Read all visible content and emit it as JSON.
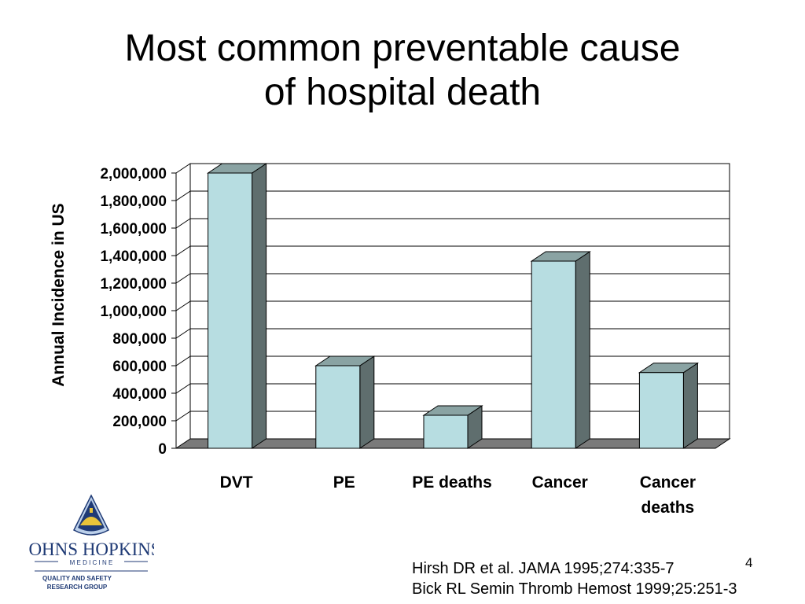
{
  "slide": {
    "title_line1": "Most common preventable cause",
    "title_line2": "of hospital death",
    "page_number": "4",
    "references": [
      "Hirsh DR et al. JAMA 1995;274:335-7",
      "Bick RL Semin Thromb Hemost 1999;25:251-3"
    ]
  },
  "logo": {
    "line1": "JOHNS HOPKINS",
    "line2": "M E D I C I N E",
    "line3": "QUALITY AND SAFETY",
    "line4": "RESEARCH GROUP",
    "icon": "dome-shield-icon",
    "colors": {
      "navy": "#1f3a75",
      "gold": "#e8c33a",
      "pale_blue": "#bcd0ea"
    }
  },
  "chart_data": {
    "type": "bar",
    "style": "3d",
    "title": "",
    "xlabel": "",
    "ylabel": "Annual Incidence in US",
    "categories": [
      [
        "DVT"
      ],
      [
        "PE"
      ],
      [
        "PE deaths"
      ],
      [
        "Cancer"
      ],
      [
        "Cancer",
        "deaths"
      ]
    ],
    "values": [
      2000000,
      600000,
      240000,
      1360000,
      550000
    ],
    "ylim": [
      0,
      2000000
    ],
    "yticks": [
      "0",
      "200,000",
      "400,000",
      "600,000",
      "800,000",
      "1,000,000",
      "1,200,000",
      "1,400,000",
      "1,600,000",
      "1,800,000",
      "2,000,000"
    ],
    "grid": true,
    "legend": "none",
    "colors": {
      "bar_front": "#b7dde1",
      "bar_side": "#5f6e6e",
      "bar_top": "#8aa3a3",
      "floor": "#7a7a7a"
    }
  }
}
